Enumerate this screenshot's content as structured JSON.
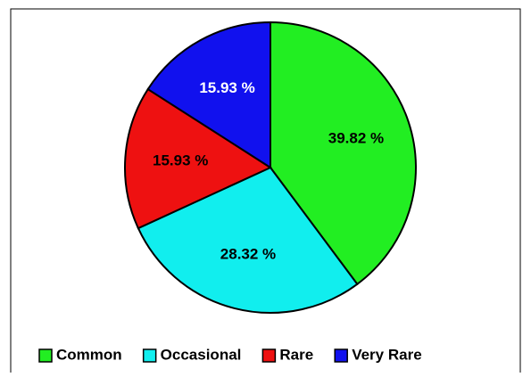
{
  "chart_data": {
    "type": "pie",
    "categories": [
      "Common",
      "Occasional",
      "Rare",
      "Very Rare"
    ],
    "values": [
      39.82,
      28.32,
      15.93,
      15.93
    ],
    "value_labels": [
      "39.82 %",
      "28.32 %",
      "15.93 %",
      "15.93 %"
    ],
    "colors": [
      "#22ee22",
      "#11eeee",
      "#ee1111",
      "#1111ee"
    ],
    "label_colors": [
      "#000000",
      "#000000",
      "#000000",
      "#ffffff"
    ],
    "legend": "bottom"
  }
}
